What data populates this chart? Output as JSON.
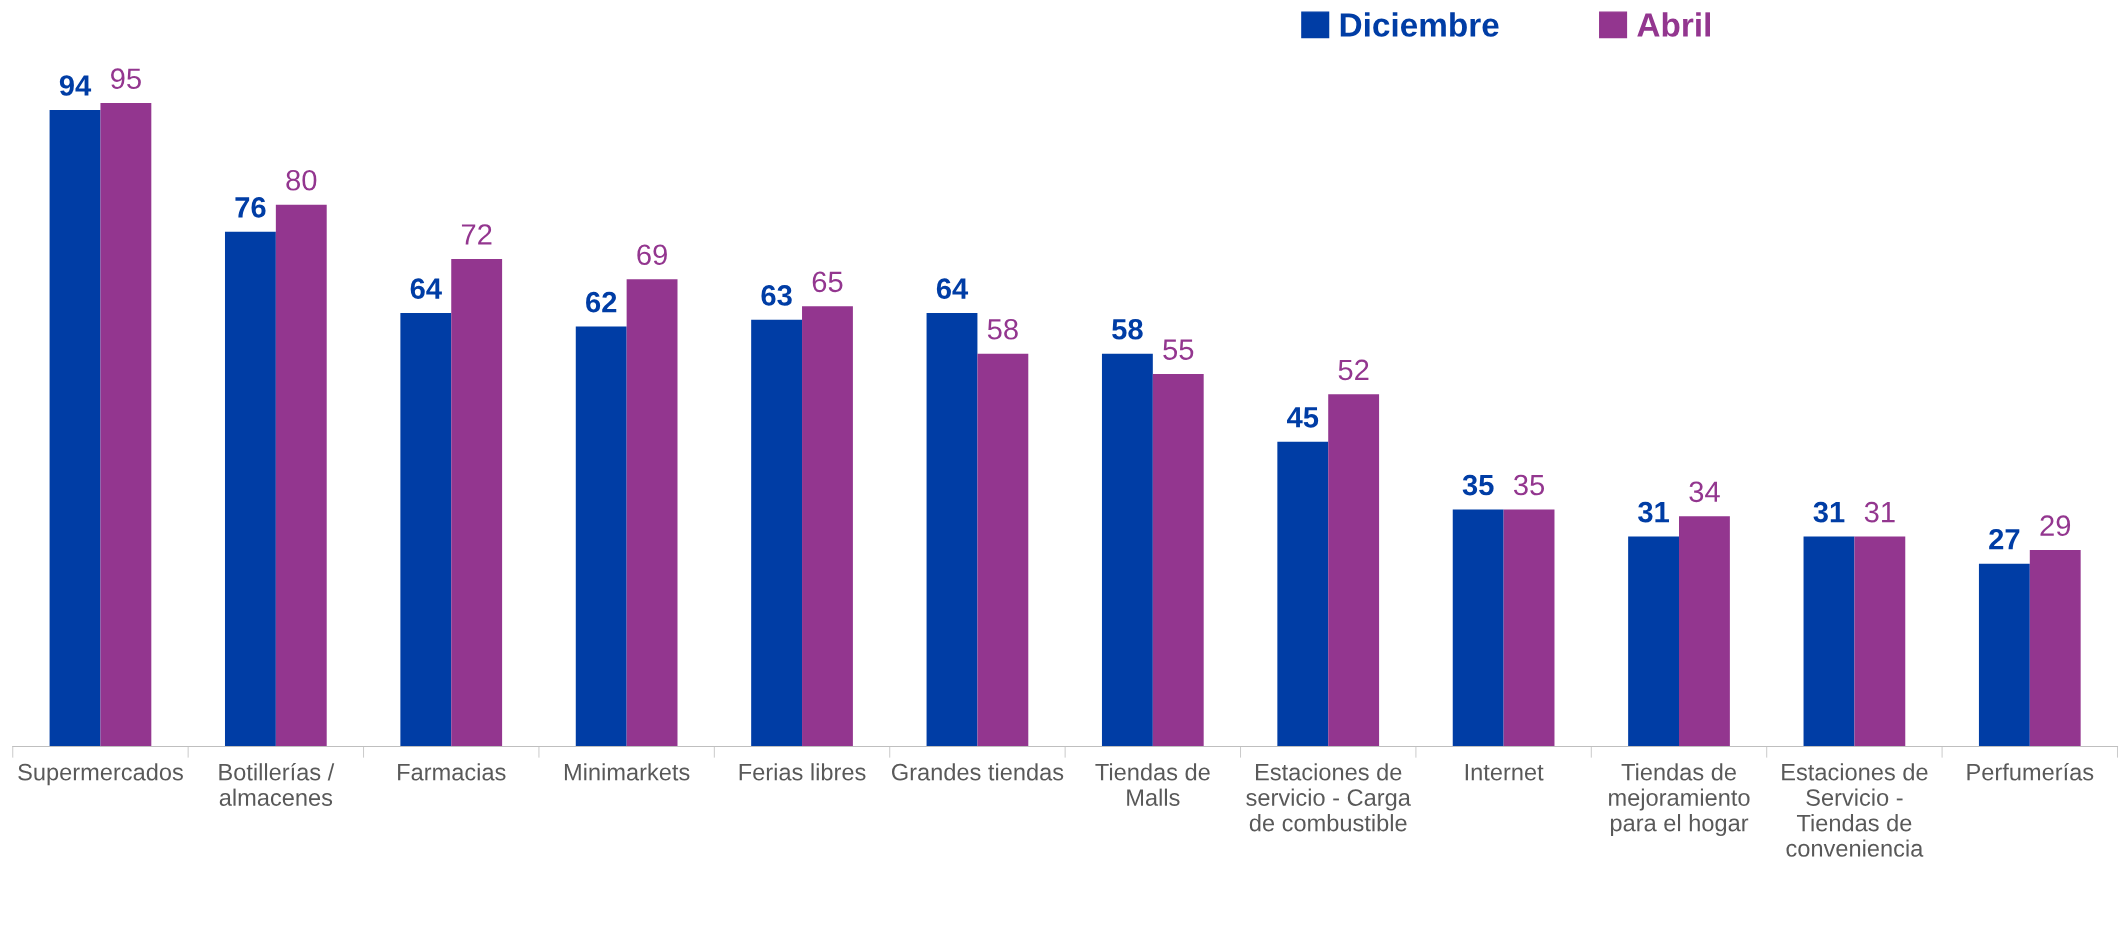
{
  "chart_data": {
    "type": "bar",
    "categories": [
      "Supermercados",
      "Botillerías /\nalmacenes",
      "Farmacias",
      "Minimarkets",
      "Ferias libres",
      "Grandes tiendas",
      "Tiendas de\nMalls",
      "Estaciones de\nservicio - Carga\nde combustible",
      "Internet",
      "Tiendas de\nmejoramiento\npara el hogar",
      "Estaciones de\nServicio -\nTiendas de\nconveniencia",
      "Perfumerías"
    ],
    "series": [
      {
        "name": "Diciembre",
        "color": "#003da5",
        "values": [
          94,
          76,
          64,
          62,
          63,
          64,
          58,
          45,
          35,
          31,
          31,
          27
        ]
      },
      {
        "name": "Abril",
        "color": "#93368f",
        "values": [
          95,
          80,
          72,
          69,
          65,
          58,
          55,
          52,
          35,
          34,
          31,
          29
        ]
      }
    ],
    "data_labels": true,
    "legend": "top",
    "grid": false
  }
}
